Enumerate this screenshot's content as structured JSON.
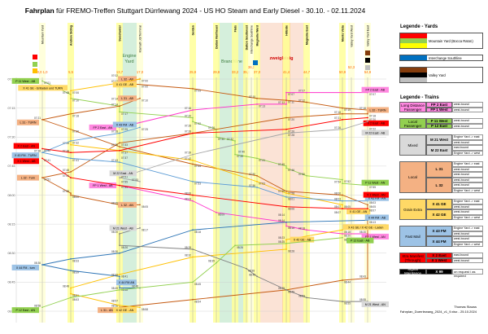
{
  "title_bold": "Fahrplan",
  "title_rest": " für FREMO-Treffen Stuttgart Dürrlewang 2024 - US HO Steam and Early Diesel - 30.10. - 02.11.2024",
  "chart_data": {
    "type": "line",
    "x_axis": "stations",
    "y_axis": "time",
    "ylim": [
      "07:00",
      "09:00"
    ],
    "y_ticks": [
      "07:00",
      "07:15",
      "07:30",
      "07:45",
      "08:00",
      "08:15",
      "08:30",
      "08:45",
      "09:00"
    ],
    "grid": true,
    "stations": [
      {
        "name": "Mountain Yard",
        "km": "0,0 1,0",
        "bold": false
      },
      {
        "name": "Andrew Siding",
        "km": "5,5",
        "bold": true
      },
      {
        "name": "Sweetwater",
        "km": "13,7",
        "bold": true
      },
      {
        "name": "Klamath Jct/Terminal",
        "km": "17,0",
        "bold": false
      },
      {
        "name": "Golden",
        "km": "25,9",
        "bold": true
      },
      {
        "name": "Dalton Northeast",
        "km": "29,8",
        "bold": true
      },
      {
        "name": "Flats",
        "km": "33,2",
        "bold": true
      },
      {
        "name": "Dalton Southwest",
        "km": "35,9",
        "bold": true
      },
      {
        "name": "Interchange Southline",
        "km": "36,3",
        "bold": false
      },
      {
        "name": "Magnolia Ward",
        "km": "37,0",
        "bold": true
      },
      {
        "name": "Hillside",
        "km": "41,4",
        "bold": true
      },
      {
        "name": "Magnolia East",
        "km": "44,7",
        "bold": true
      },
      {
        "name": "Monte Vista",
        "km": "50,9",
        "bold": true
      },
      {
        "name": "Valley Yard West",
        "km": "52,3",
        "bold": false
      },
      {
        "name": "Valley Yard East",
        "km": "54,9",
        "bold": false
      }
    ],
    "areas": {
      "engine_yard": "Engine Yard",
      "branchline": "Branchline",
      "double_track": "zweigleisig"
    },
    "series": [
      {
        "name": "P 11 West",
        "color": "#92d050",
        "label_bg": "#92d050",
        "points": [
          [
            0,
            "07:01"
          ],
          [
            1,
            "07:08"
          ],
          [
            1,
            "07:10"
          ],
          [
            2,
            "07:14"
          ],
          [
            2,
            "07:17"
          ],
          [
            4,
            "07:20"
          ],
          [
            4,
            "07:22"
          ],
          [
            5,
            "07:26"
          ],
          [
            5,
            "07:30"
          ],
          [
            6,
            "07:32"
          ],
          [
            6,
            "07:39"
          ],
          [
            7,
            "07:40"
          ],
          [
            9,
            "07:41"
          ],
          [
            10,
            "07:45"
          ],
          [
            10,
            "07:46"
          ],
          [
            11,
            "07:50"
          ],
          [
            12,
            "07:52"
          ],
          [
            12,
            "07:54"
          ],
          [
            14,
            "07:55"
          ]
        ],
        "labels": [
          {
            "at": 0,
            "text": "P 11 West - AB"
          },
          {
            "at": 18,
            "text": "P 11 West - AN"
          }
        ]
      },
      {
        "name": "FP 2 East",
        "color": "#ff33cc",
        "label_bg": "#ff88e0",
        "points": [
          [
            14,
            "07:07"
          ],
          [
            11,
            "07:07"
          ],
          [
            10,
            "07:07"
          ],
          [
            10,
            "07:13"
          ],
          [
            9,
            "07:13"
          ],
          [
            4,
            "07:16"
          ],
          [
            2,
            "07:25"
          ]
        ],
        "labels": [
          {
            "at": 0,
            "text": "FP 2 East - AB"
          },
          {
            "at": 6,
            "text": "FP 2 East - AN"
          }
        ]
      },
      {
        "name": "FP 1 West",
        "color": "#ff33cc",
        "label_bg": "#ff88e0",
        "points": [
          [
            2,
            "07:55"
          ],
          [
            4,
            "08:03"
          ],
          [
            5,
            "08:09"
          ],
          [
            10,
            "08:14"
          ],
          [
            10,
            "08:16"
          ],
          [
            11,
            "08:18"
          ],
          [
            12,
            "08:20"
          ],
          [
            14,
            "08:20"
          ]
        ],
        "labels": [
          {
            "at": 0,
            "text": "FP 1 West - AB"
          },
          {
            "at": 7,
            "text": "FP 1 West - AN"
          }
        ]
      },
      {
        "name": "L 32",
        "color": "#c55a11",
        "label_bg": "#f4b183",
        "points": [
          [
            3,
            "07:00"
          ],
          [
            2,
            "07:02"
          ],
          [
            4,
            "07:05"
          ],
          [
            9,
            "07:10"
          ],
          [
            10,
            "07:11"
          ],
          [
            11,
            "07:12"
          ],
          [
            12,
            "07:15"
          ],
          [
            14,
            "07:16"
          ],
          [
            14,
            "07:18"
          ],
          [
            12,
            "07:18"
          ],
          [
            10,
            "07:20"
          ],
          [
            4,
            "07:28"
          ],
          [
            2,
            "07:33"
          ],
          [
            1,
            "07:48"
          ],
          [
            0,
            "07:51"
          ],
          [
            1,
            "07:59"
          ],
          [
            1,
            "08:00"
          ],
          [
            2,
            "08:05"
          ],
          [
            3,
            "08:05"
          ]
        ],
        "labels": [
          {
            "at": 0,
            "text": "L 32 - AB"
          },
          {
            "at": 7,
            "text": "L 32 - TURN"
          },
          {
            "at": 14,
            "text": "L 32 - Turn"
          },
          {
            "at": 18,
            "text": "L 32 - AN"
          }
        ]
      },
      {
        "name": "L 31",
        "color": "#c55a11",
        "label_bg": "#f4b183",
        "points": [
          [
            3,
            "07:10"
          ],
          [
            2,
            "07:14"
          ],
          [
            1,
            "07:18"
          ],
          [
            0,
            "07:21"
          ],
          [
            1,
            "07:26"
          ],
          [
            2,
            "07:35"
          ],
          [
            4,
            "07:44"
          ],
          [
            9,
            "07:50"
          ],
          [
            10,
            "07:58"
          ],
          [
            12,
            "08:00"
          ],
          [
            14,
            "08:05"
          ],
          [
            14,
            "08:43"
          ],
          [
            12,
            "08:44"
          ],
          [
            10,
            "08:49"
          ],
          [
            4,
            "08:54"
          ],
          [
            2,
            "08:58"
          ]
        ],
        "labels": [
          {
            "at": 0,
            "text": "L 31 - AB"
          },
          {
            "at": 3,
            "text": "L 31 - TURN"
          },
          {
            "at": 15,
            "text": "L 31 - AN"
          }
        ]
      },
      {
        "name": "X 41 GE",
        "color": "#ffc000",
        "label_bg": "#ffd966",
        "points": [
          [
            3,
            "07:00"
          ],
          [
            2,
            "07:02"
          ],
          [
            1,
            "07:06"
          ],
          [
            1,
            "07:34"
          ],
          [
            2,
            "07:37"
          ],
          [
            4,
            "07:42"
          ],
          [
            9,
            "07:53"
          ],
          [
            10,
            "07:59"
          ],
          [
            12,
            "08:05"
          ],
          [
            12,
            "08:07"
          ]
        ],
        "labels": [
          {
            "at": 0,
            "text": "X 41 GE - AB"
          },
          {
            "at": 2,
            "text": "X 41 GE - Entladen und TURN"
          },
          {
            "at": 9,
            "text": "X 41 GE - AN"
          }
        ]
      },
      {
        "name": "X 42 GE",
        "color": "#ffc000",
        "label_bg": "#ffd966",
        "points": [
          [
            12,
            "08:18"
          ],
          [
            10,
            "08:23"
          ],
          [
            10,
            "08:28"
          ],
          [
            4,
            "08:32"
          ],
          [
            2,
            "08:41"
          ],
          [
            1,
            "08:48"
          ],
          [
            1,
            "08:51"
          ],
          [
            2,
            "08:57"
          ],
          [
            3,
            "08:58"
          ]
        ],
        "labels": [
          {
            "at": 0,
            "text": "X 41 GE / X 42 GE - Laden"
          },
          {
            "at": 1,
            "text": "X 42 GE - AB"
          },
          {
            "at": 8,
            "text": "X 42 GE - AN"
          }
        ]
      },
      {
        "name": "X 43 FM",
        "color": "#5b9bd5",
        "label_bg": "#9dc3e6",
        "points": [
          [
            3,
            "07:25"
          ],
          [
            2,
            "07:28"
          ],
          [
            1,
            "07:32"
          ],
          [
            0,
            "07:38"
          ],
          [
            1,
            "07:41"
          ],
          [
            2,
            "07:43"
          ],
          [
            4,
            "07:53"
          ],
          [
            9,
            "07:56"
          ],
          [
            10,
            "08:01"
          ],
          [
            12,
            "08:03"
          ],
          [
            14,
            "08:03"
          ]
        ],
        "labels": [
          {
            "at": 0,
            "text": "X 43 FM - AB"
          },
          {
            "at": 3,
            "text": "X 43 FM - TURN"
          },
          {
            "at": 10,
            "text": "X 43 FM - AN"
          }
        ]
      },
      {
        "name": "X 44 FM",
        "color": "#2e75b6",
        "label_bg": "#9dc3e6",
        "points": [
          [
            14,
            "08:13"
          ],
          [
            10,
            "08:14"
          ],
          [
            4,
            "08:18"
          ],
          [
            2,
            "08:30"
          ],
          [
            1,
            "08:33"
          ],
          [
            0,
            "08:36"
          ],
          [
            1,
            "08:39"
          ],
          [
            2,
            "08:42"
          ],
          [
            2,
            "08:48"
          ],
          [
            3,
            "08:48"
          ]
        ],
        "labels": [
          {
            "at": 0,
            "text": "X 44 FM - AB"
          },
          {
            "at": 5,
            "text": "X 44 FM - turn"
          },
          {
            "at": 9,
            "text": "X 44 FM AN"
          }
        ]
      },
      {
        "name": "X 2 East",
        "color": "#ff0000",
        "label_bg": "#ff0000",
        "points": [
          [
            14,
            "07:20"
          ],
          [
            12,
            "07:21"
          ],
          [
            10,
            "07:26"
          ],
          [
            4,
            "07:28"
          ],
          [
            2,
            "07:37"
          ],
          [
            1,
            "07:38"
          ],
          [
            0,
            "07:36"
          ]
        ],
        "labels": [
          {
            "at": 0,
            "text": "X 2 East - AB"
          },
          {
            "at": 6,
            "text": "X 2 East - AN"
          }
        ]
      },
      {
        "name": "X 1 West",
        "color": "#ff0000",
        "label_bg": "#ff0000",
        "points": [
          [
            0,
            "07:41"
          ],
          [
            1,
            "07:51"
          ],
          [
            2,
            "07:55"
          ],
          [
            4,
            "08:00"
          ],
          [
            10,
            "08:06"
          ],
          [
            12,
            "08:07"
          ],
          [
            14,
            "08:07"
          ]
        ],
        "labels": [
          {
            "at": 0,
            "text": "X 1 West - AB"
          },
          {
            "at": 6,
            "text": "X 1 West - AN"
          }
        ]
      },
      {
        "name": "M 22 East",
        "color": "#a6a6a6",
        "label_bg": "#d9d9d9",
        "points": [
          [
            14,
            "07:22"
          ],
          [
            12,
            "07:26"
          ],
          [
            10,
            "07:28"
          ],
          [
            4,
            "07:39"
          ],
          [
            2,
            "07:51"
          ],
          [
            3,
            "07:53"
          ]
        ],
        "labels": [
          {
            "at": 0,
            "text": "M 22 East - AB"
          },
          {
            "at": 5,
            "text": "M 22 East - AN"
          }
        ]
      },
      {
        "name": "M 21 West",
        "color": "#7f7f7f",
        "label_bg": "#d9d9d9",
        "points": [
          [
            3,
            "08:17"
          ],
          [
            2,
            "08:20"
          ],
          [
            2,
            "08:26"
          ],
          [
            4,
            "08:28"
          ],
          [
            7,
            "08:38"
          ],
          [
            9,
            "08:42"
          ],
          [
            10,
            "08:49"
          ],
          [
            11,
            "08:53"
          ],
          [
            12,
            "08:55"
          ],
          [
            14,
            "08:55"
          ]
        ],
        "labels": [
          {
            "at": 0,
            "text": "M 21 West - AB"
          },
          {
            "at": 9,
            "text": "M 21 West - AN"
          }
        ]
      },
      {
        "name": "P 12 East",
        "color": "#92d050",
        "label_bg": "#92d050",
        "points": [
          [
            12,
            "08:22"
          ],
          [
            10,
            "08:25"
          ],
          [
            6,
            "08:26"
          ],
          [
            5,
            "08:35"
          ],
          [
            4,
            "08:45"
          ],
          [
            2,
            "08:49"
          ],
          [
            1,
            "08:53"
          ],
          [
            0,
            "08:58"
          ]
        ],
        "labels": [
          {
            "at": 0,
            "text": "P 12 East - AB"
          },
          {
            "at": 7,
            "text": "P 12 East - AN"
          }
        ]
      }
    ]
  },
  "legend_yards": {
    "title": "Legende - Yards",
    "items": [
      {
        "label": "Mountain Yard (Bocca Raton)",
        "colors": [
          "#ff0000",
          "#92d050",
          "#ffff00"
        ]
      },
      {
        "label": "Interchange Southline",
        "colors": [
          "#0070c0"
        ]
      },
      {
        "label": "Valley Yard",
        "colors": [
          "#843c0c",
          "#000000",
          "#bfbfbf"
        ]
      }
    ]
  },
  "legend_trains": {
    "title": "Legende - Trains",
    "groups": [
      {
        "name": "Long Distance Passenger",
        "color": "#ff88e0",
        "text_color": "#000",
        "trains": [
          {
            "id": "FP 2 East",
            "dir": [
              "west-bound"
            ]
          },
          {
            "id": "FP 1 West",
            "dir": [
              "west-bound"
            ]
          }
        ]
      },
      {
        "name": "Local Passenger",
        "color": "#92d050",
        "text_color": "#000",
        "trains": [
          {
            "id": "P 11 West",
            "dir": [
              "west-bound"
            ]
          },
          {
            "id": "P 12 East",
            "dir": [
              "west-bound"
            ]
          }
        ]
      },
      {
        "name": "Mixed",
        "color": "#d9d9d9",
        "text_color": "#000",
        "trains": [
          {
            "id": "M 21 West",
            "dir": [
              "Engine Yard -> east",
              "west-bound"
            ]
          },
          {
            "id": "M 22 East",
            "dir": [
              "east-bound",
              "Engine Yard -> west"
            ]
          }
        ]
      },
      {
        "name": "Local",
        "color": "#f4b183",
        "text_color": "#000",
        "trains": [
          {
            "id": "L 31",
            "dir": [
              "Engine Yard -> east",
              "west-bound",
              "west-bound"
            ]
          },
          {
            "id": "L 32",
            "dir": [
              "west-bound",
              "west-bound",
              "Engine Yard -> west"
            ]
          }
        ]
      },
      {
        "name": "Grain Extra",
        "color": "#ffd966",
        "text_color": "#000",
        "trains": [
          {
            "id": "X 41 GE",
            "dir": [
              "Engine Yard -> east",
              "west-bound"
            ]
          },
          {
            "id": "X 42 GE",
            "dir": [
              "west-bound",
              "Engine Yard -> west"
            ]
          }
        ]
      },
      {
        "name": "Fast Mail",
        "color": "#9dc3e6",
        "text_color": "#000",
        "trains": [
          {
            "id": "X 43 FM",
            "dir": [
              "Engine Yard -> east",
              "west-bound"
            ]
          },
          {
            "id": "X 44 FM",
            "dir": [
              "west-bound",
              "Engine Yard -> west"
            ]
          }
        ]
      },
      {
        "name": "Xtra Manifest (Through)",
        "color": "#ff0000",
        "text_color": "#000",
        "trains": [
          {
            "id": "X 2 East",
            "dir": [
              "east-bound"
            ]
          },
          {
            "id": "X 1 West",
            "dir": [
              "west-bound"
            ]
          }
        ]
      },
      {
        "name": "Signal Maintance",
        "color": "#000000",
        "text_color": "#fff",
        "trains": [
          {
            "id": "X 99",
            "dir": [
              "on request / as required"
            ]
          }
        ]
      }
    ]
  },
  "footer": {
    "author": "Thomas Stauss",
    "file": "Fahrplan_Duerrlewang_2024_v1_9.xlsx - 25.10.2024"
  }
}
